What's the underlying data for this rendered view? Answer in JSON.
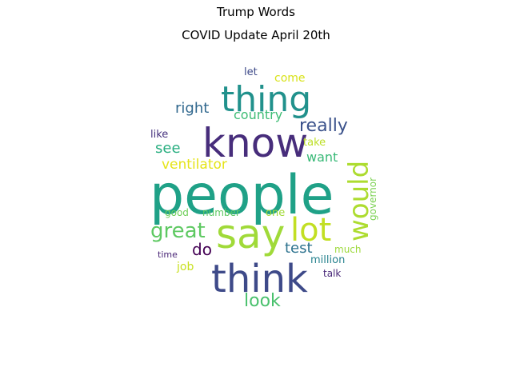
{
  "figure": {
    "suptitle": "Trump Words",
    "title": "COVID Update April 20th"
  },
  "word_cloud": {
    "words": [
      {
        "text": "people",
        "color": "#1fa187"
      },
      {
        "text": "know",
        "color": "#472d7b"
      },
      {
        "text": "thing",
        "color": "#21918c"
      },
      {
        "text": "say",
        "color": "#a0da39"
      },
      {
        "text": "think",
        "color": "#3e4a89"
      },
      {
        "text": "lot",
        "color": "#c2df23"
      },
      {
        "text": "would",
        "color": "#addc30"
      },
      {
        "text": "great",
        "color": "#5ec962"
      },
      {
        "text": "really",
        "color": "#3b528b"
      },
      {
        "text": "look",
        "color": "#4ac16d"
      },
      {
        "text": "ventilator",
        "color": "#e5e419"
      },
      {
        "text": "test",
        "color": "#2c728e"
      },
      {
        "text": "country",
        "color": "#3dbc74"
      },
      {
        "text": "right",
        "color": "#31688e"
      },
      {
        "text": "do",
        "color": "#440154"
      },
      {
        "text": "see",
        "color": "#28ae80"
      },
      {
        "text": "want",
        "color": "#38b977"
      },
      {
        "text": "come",
        "color": "#d8e219"
      },
      {
        "text": "let",
        "color": "#3e4a89"
      },
      {
        "text": "take",
        "color": "#bddf26"
      },
      {
        "text": "like",
        "color": "#46327e"
      },
      {
        "text": "governor",
        "color": "#7ad151"
      },
      {
        "text": "good",
        "color": "#6ece58"
      },
      {
        "text": "number",
        "color": "#5ec962"
      },
      {
        "text": "one",
        "color": "#a2da37"
      },
      {
        "text": "million",
        "color": "#26828e"
      },
      {
        "text": "much",
        "color": "#9dd93b"
      },
      {
        "text": "time",
        "color": "#482475"
      },
      {
        "text": "job",
        "color": "#c8e020"
      },
      {
        "text": "talk",
        "color": "#482878"
      }
    ]
  }
}
